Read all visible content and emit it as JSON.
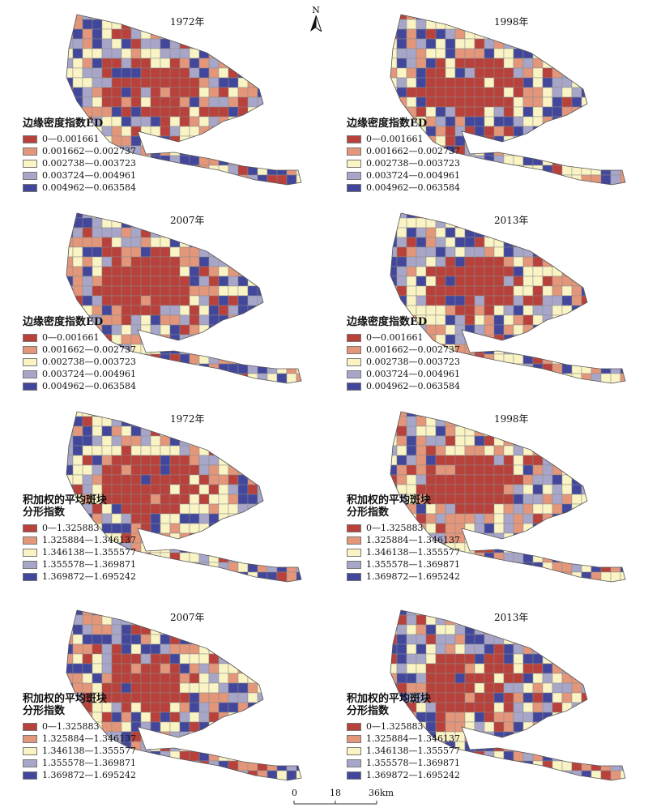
{
  "north_label": "N",
  "scale": {
    "labels": [
      "0",
      "18",
      "36km"
    ]
  },
  "colors": [
    "#b8413b",
    "#e3967a",
    "#faf4c4",
    "#a7a6c9",
    "#42479b"
  ],
  "panels": [
    {
      "year": "1972年",
      "legend_title": [
        "边缘密度指数ED"
      ],
      "legend_items": [
        "0—0.001661",
        "0.001662—0.002737",
        "0.002738—0.003723",
        "0.003724—0.004961",
        "0.004962—0.063584"
      ]
    },
    {
      "year": "1998年",
      "legend_title": [
        "边缘密度指数ED"
      ],
      "legend_items": [
        "0—0.001661",
        "0.001662—0.002737",
        "0.002738—0.003723",
        "0.003724—0.004961",
        "0.004962—0.063584"
      ]
    },
    {
      "year": "2007年",
      "legend_title": [
        "边缘密度指数ED"
      ],
      "legend_items": [
        "0—0.001661",
        "0.001662—0.002737",
        "0.002738—0.003723",
        "0.003724—0.004961",
        "0.004962—0.063584"
      ]
    },
    {
      "year": "2013年",
      "legend_title": [
        "边缘密度指数ED"
      ],
      "legend_items": [
        "0—0.001661",
        "0.001662—0.002737",
        "0.002738—0.003723",
        "0.003724—0.004961",
        "0.004962—0.063584"
      ]
    },
    {
      "year": "1972年",
      "legend_title": [
        "积加权的平均斑块",
        "分形指数"
      ],
      "legend_items": [
        "0—1.325883",
        "1.325884—1.346137",
        "1.346138—1.355577",
        "1.355578—1.369871",
        "1.369872—1.695242"
      ]
    },
    {
      "year": "1998年",
      "legend_title": [
        "积加权的平均斑块",
        "分形指数"
      ],
      "legend_items": [
        "0—1.325883",
        "1.325884—1.346137",
        "1.346138—1.355577",
        "1.355578—1.369871",
        "1.369872—1.695242"
      ]
    },
    {
      "year": "2007年",
      "legend_title": [
        "积加权的平均斑块",
        "分形指数"
      ],
      "legend_items": [
        "0—1.325883",
        "1.325884—1.346137",
        "1.346138—1.355577",
        "1.355578—1.369871",
        "1.369872—1.695242"
      ]
    },
    {
      "year": "2013年",
      "legend_title": [
        "积加权的平均斑块",
        "分形指数"
      ],
      "legend_items": [
        "0—1.325883",
        "1.325884—1.346137",
        "1.346138—1.355577",
        "1.355578—1.369871",
        "1.369872—1.695242"
      ]
    }
  ]
}
